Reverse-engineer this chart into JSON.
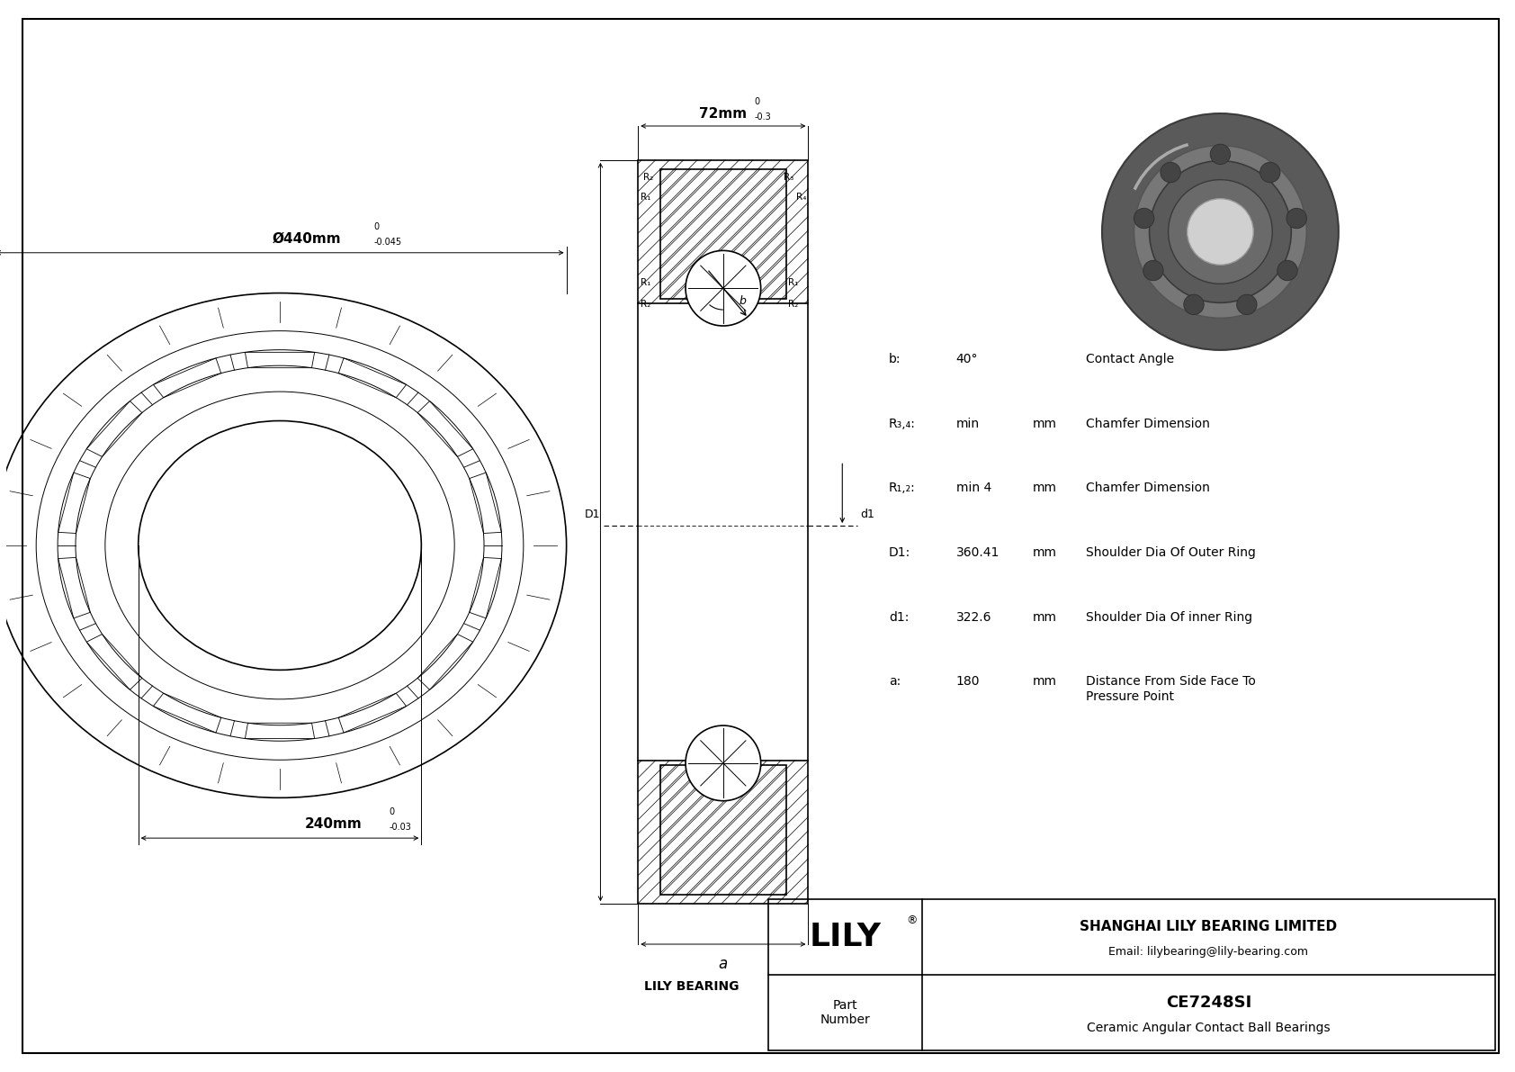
{
  "bg_color": "#ffffff",
  "line_color": "#000000",
  "specs": [
    {
      "label": "b:",
      "value": "40°",
      "unit": "",
      "desc": "Contact Angle"
    },
    {
      "label": "R₃,₄:",
      "value": "min",
      "unit": "mm",
      "desc": "Chamfer Dimension"
    },
    {
      "label": "R₁,₂:",
      "value": "min 4",
      "unit": "mm",
      "desc": "Chamfer Dimension"
    },
    {
      "label": "D1:",
      "value": "360.41",
      "unit": "mm",
      "desc": "Shoulder Dia Of Outer Ring"
    },
    {
      "label": "d1:",
      "value": "322.6",
      "unit": "mm",
      "desc": "Shoulder Dia Of inner Ring"
    },
    {
      "label": "a:",
      "value": "180",
      "unit": "mm",
      "desc": "Distance From Side Face To\nPressure Point"
    }
  ],
  "company_name": "SHANGHAI LILY BEARING LIMITED",
  "company_email": "Email: lilybearing@lily-bearing.com",
  "part_number": "CE7248SI",
  "part_desc": "Ceramic Angular Contact Ball Bearings",
  "lily_bearing_label": "LILY BEARING",
  "outer_diam_label": "Ø440mm",
  "outer_tol_upper": "0",
  "outer_tol_lower": "-0.045",
  "inner_diam_label": "240mm",
  "inner_tol_upper": "0",
  "inner_tol_lower": "-0.03",
  "width_label": "72mm",
  "width_tol_upper": "0",
  "width_tol_lower": "-0.3"
}
